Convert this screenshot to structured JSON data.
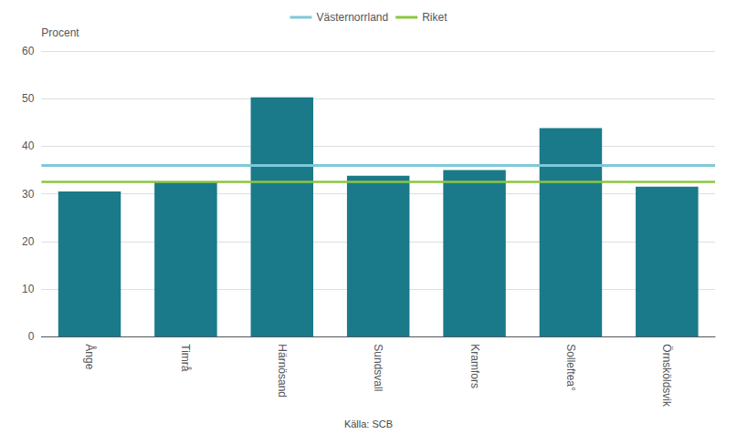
{
  "chart_data": {
    "type": "bar",
    "categories": [
      "Ånge",
      "Timrå",
      "Härnösand",
      "Sundsvall",
      "Kramfors",
      "Solleftea°",
      "Örnsköldsvik"
    ],
    "values": [
      30.5,
      32.5,
      50.3,
      33.8,
      35.0,
      43.8,
      31.5
    ],
    "color": "#1a7a8a",
    "reference_lines": [
      {
        "name": "Västernorrland",
        "value": 36.0,
        "color": "#7ec8d8"
      },
      {
        "name": "Riket",
        "value": 32.5,
        "color": "#8dc63f"
      }
    ],
    "ylabel": "Procent",
    "source": "Källa: SCB",
    "ylim": [
      0,
      60
    ],
    "yticks": [
      0,
      10,
      20,
      30,
      40,
      50,
      60
    ],
    "grid": true,
    "legend": "top"
  }
}
